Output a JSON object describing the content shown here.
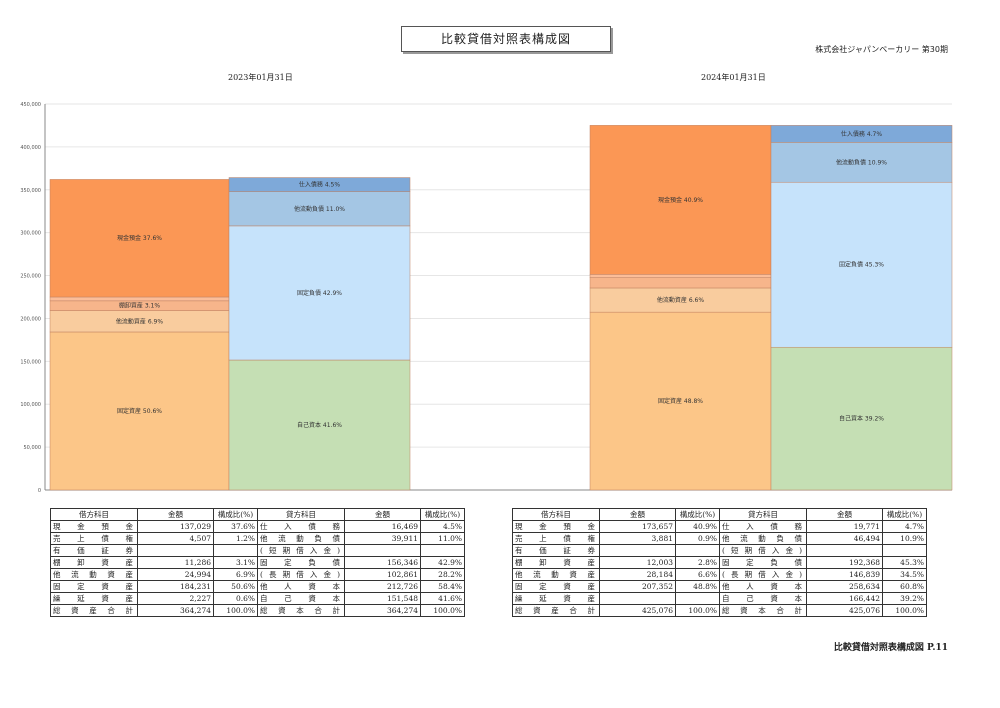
{
  "header": {
    "title": "比較貸借対照表構成図",
    "company": "株式会社ジャパンベーカリー 第30期"
  },
  "footer": {
    "text": "比較貸借対照表構成図 P.11"
  },
  "table_headers": {
    "debit_item": "借方科目",
    "amount": "金額",
    "ratio": "構成比(%)",
    "credit_item": "貸方科目"
  },
  "chart_data": {
    "type": "bar",
    "stacked": true,
    "ylim": [
      0,
      450000
    ],
    "yticks": [
      0,
      50000,
      100000,
      150000,
      200000,
      250000,
      300000,
      350000,
      400000,
      450000
    ],
    "ytick_labels": [
      "0",
      "50,000",
      "100,000",
      "150,000",
      "200,000",
      "250,000",
      "300,000",
      "350,000",
      "400,000",
      "450,000"
    ],
    "colors": {
      "fixed_assets": "#fcc688",
      "other_current_assets": "#f9cc9e",
      "inventory": "#f7b58b",
      "securities": "#f5a878",
      "receivables": "#fbbd99",
      "cash": "#fb9755",
      "equity": "#c5dfb4",
      "fixed_liab": "#c6e3fb",
      "other_current_liab": "#a4c6e4",
      "payables": "#7ea9d9"
    },
    "periods": [
      {
        "date": "2023年01月31日",
        "debit": [
          {
            "key": "fixed_assets",
            "label": "固定資産 50.6%",
            "value": 184231
          },
          {
            "key": "other_current_assets",
            "label": "他流動資産 6.9%",
            "value": 24994
          },
          {
            "key": "inventory",
            "label": "棚卸資産 3.1%",
            "value": 11286
          },
          {
            "key": "receivables",
            "label": "",
            "value": 4507
          },
          {
            "key": "cash",
            "label": "現金預金 37.6%",
            "value": 137029
          }
        ],
        "credit": [
          {
            "key": "equity",
            "label": "自己資本 41.6%",
            "value": 151548
          },
          {
            "key": "fixed_liab",
            "label": "固定負債 42.9%",
            "value": 156346
          },
          {
            "key": "other_current_liab",
            "label": "他流動負債 11.0%",
            "value": 39911
          },
          {
            "key": "payables",
            "label": "仕入債務 4.5%",
            "value": 16469
          }
        ],
        "table": {
          "debit": [
            {
              "item": "現金預金",
              "amount": "137,029",
              "ratio": "37.6%"
            },
            {
              "item": "売上債権",
              "amount": "4,507",
              "ratio": "1.2%"
            },
            {
              "item": "有価証券",
              "amount": "",
              "ratio": ""
            },
            {
              "item": "棚卸資産",
              "amount": "11,286",
              "ratio": "3.1%"
            },
            {
              "item": "他流動資産",
              "amount": "24,994",
              "ratio": "6.9%"
            },
            {
              "item": "固定資産",
              "amount": "184,231",
              "ratio": "50.6%"
            },
            {
              "item": "繰延資産",
              "amount": "2,227",
              "ratio": "0.6%"
            },
            {
              "item": "総資産合計",
              "amount": "364,274",
              "ratio": "100.0%"
            }
          ],
          "credit": [
            {
              "item": "仕入債務",
              "amount": "16,469",
              "ratio": "4.5%"
            },
            {
              "item": "他流動負債",
              "amount": "39,911",
              "ratio": "11.0%"
            },
            {
              "item": "(短期借入金)",
              "amount": "",
              "ratio": ""
            },
            {
              "item": "固定負債",
              "amount": "156,346",
              "ratio": "42.9%"
            },
            {
              "item": "(長期借入金)",
              "amount": "102,861",
              "ratio": "28.2%"
            },
            {
              "item": "他人資本",
              "amount": "212,726",
              "ratio": "58.4%"
            },
            {
              "item": "自己資本",
              "amount": "151,548",
              "ratio": "41.6%"
            },
            {
              "item": "総資本合計",
              "amount": "364,274",
              "ratio": "100.0%"
            }
          ]
        }
      },
      {
        "date": "2024年01月31日",
        "debit": [
          {
            "key": "fixed_assets",
            "label": "固定資産 48.8%",
            "value": 207352
          },
          {
            "key": "other_current_assets",
            "label": "他流動資産 6.6%",
            "value": 28184
          },
          {
            "key": "inventory",
            "label": "",
            "value": 12003
          },
          {
            "key": "receivables",
            "label": "",
            "value": 3881
          },
          {
            "key": "cash",
            "label": "現金預金 40.9%",
            "value": 173657
          }
        ],
        "credit": [
          {
            "key": "equity",
            "label": "自己資本 39.2%",
            "value": 166442
          },
          {
            "key": "fixed_liab",
            "label": "固定負債 45.3%",
            "value": 192368
          },
          {
            "key": "other_current_liab",
            "label": "他流動負債 10.9%",
            "value": 46494
          },
          {
            "key": "payables",
            "label": "仕入債務 4.7%",
            "value": 19771
          }
        ],
        "table": {
          "debit": [
            {
              "item": "現金預金",
              "amount": "173,657",
              "ratio": "40.9%"
            },
            {
              "item": "売上債権",
              "amount": "3,881",
              "ratio": "0.9%"
            },
            {
              "item": "有価証券",
              "amount": "",
              "ratio": ""
            },
            {
              "item": "棚卸資産",
              "amount": "12,003",
              "ratio": "2.8%"
            },
            {
              "item": "他流動資産",
              "amount": "28,184",
              "ratio": "6.6%"
            },
            {
              "item": "固定資産",
              "amount": "207,352",
              "ratio": "48.8%"
            },
            {
              "item": "繰延資産",
              "amount": "",
              "ratio": ""
            },
            {
              "item": "総資産合計",
              "amount": "425,076",
              "ratio": "100.0%"
            }
          ],
          "credit": [
            {
              "item": "仕入債務",
              "amount": "19,771",
              "ratio": "4.7%"
            },
            {
              "item": "他流動負債",
              "amount": "46,494",
              "ratio": "10.9%"
            },
            {
              "item": "(短期借入金)",
              "amount": "",
              "ratio": ""
            },
            {
              "item": "固定負債",
              "amount": "192,368",
              "ratio": "45.3%"
            },
            {
              "item": "(長期借入金)",
              "amount": "146,839",
              "ratio": "34.5%"
            },
            {
              "item": "他人資本",
              "amount": "258,634",
              "ratio": "60.8%"
            },
            {
              "item": "自己資本",
              "amount": "166,442",
              "ratio": "39.2%"
            },
            {
              "item": "総資本合計",
              "amount": "425,076",
              "ratio": "100.0%"
            }
          ]
        }
      }
    ]
  }
}
